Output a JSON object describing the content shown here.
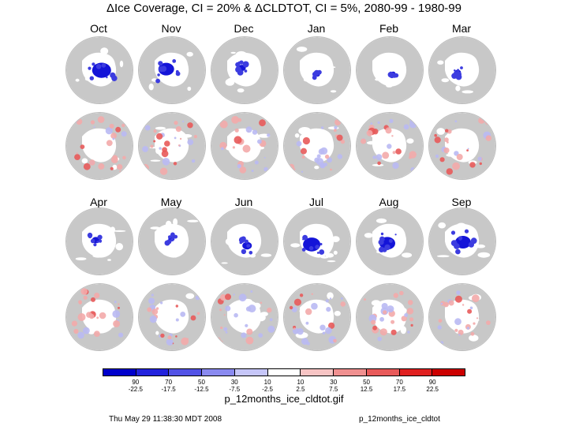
{
  "title": "ΔIce Coverage, CI = 20%  &  ΔCLDTOT, CI = 5%,  2080-99 - 1980-99",
  "months_top": [
    "Oct",
    "Nov",
    "Dec",
    "Jan",
    "Feb",
    "Mar"
  ],
  "months_bottom": [
    "Apr",
    "May",
    "Jun",
    "Jul",
    "Aug",
    "Sep"
  ],
  "colorbar": {
    "colors": [
      "#0000cc",
      "#2323dd",
      "#5252e6",
      "#8a8af0",
      "#c6c6f8",
      "#ffffff",
      "#f7c4c4",
      "#f09090",
      "#e85a5a",
      "#e02020",
      "#cc0000"
    ],
    "ice_labels": [
      "90",
      "70",
      "50",
      "30",
      "10",
      "10",
      "30",
      "50",
      "70",
      "90"
    ],
    "cloud_labels": [
      "-22.5",
      "-17.5",
      "-12.5",
      "-7.5",
      "-2.5",
      "2.5",
      "7.5",
      "12.5",
      "17.5",
      "22.5"
    ]
  },
  "caption": "p_12months_ice_cldtot.gif",
  "footer_left": "Thu May 29 11:38:30 MDT 2008",
  "footer_right": "p_12months_ice_cldtot"
}
